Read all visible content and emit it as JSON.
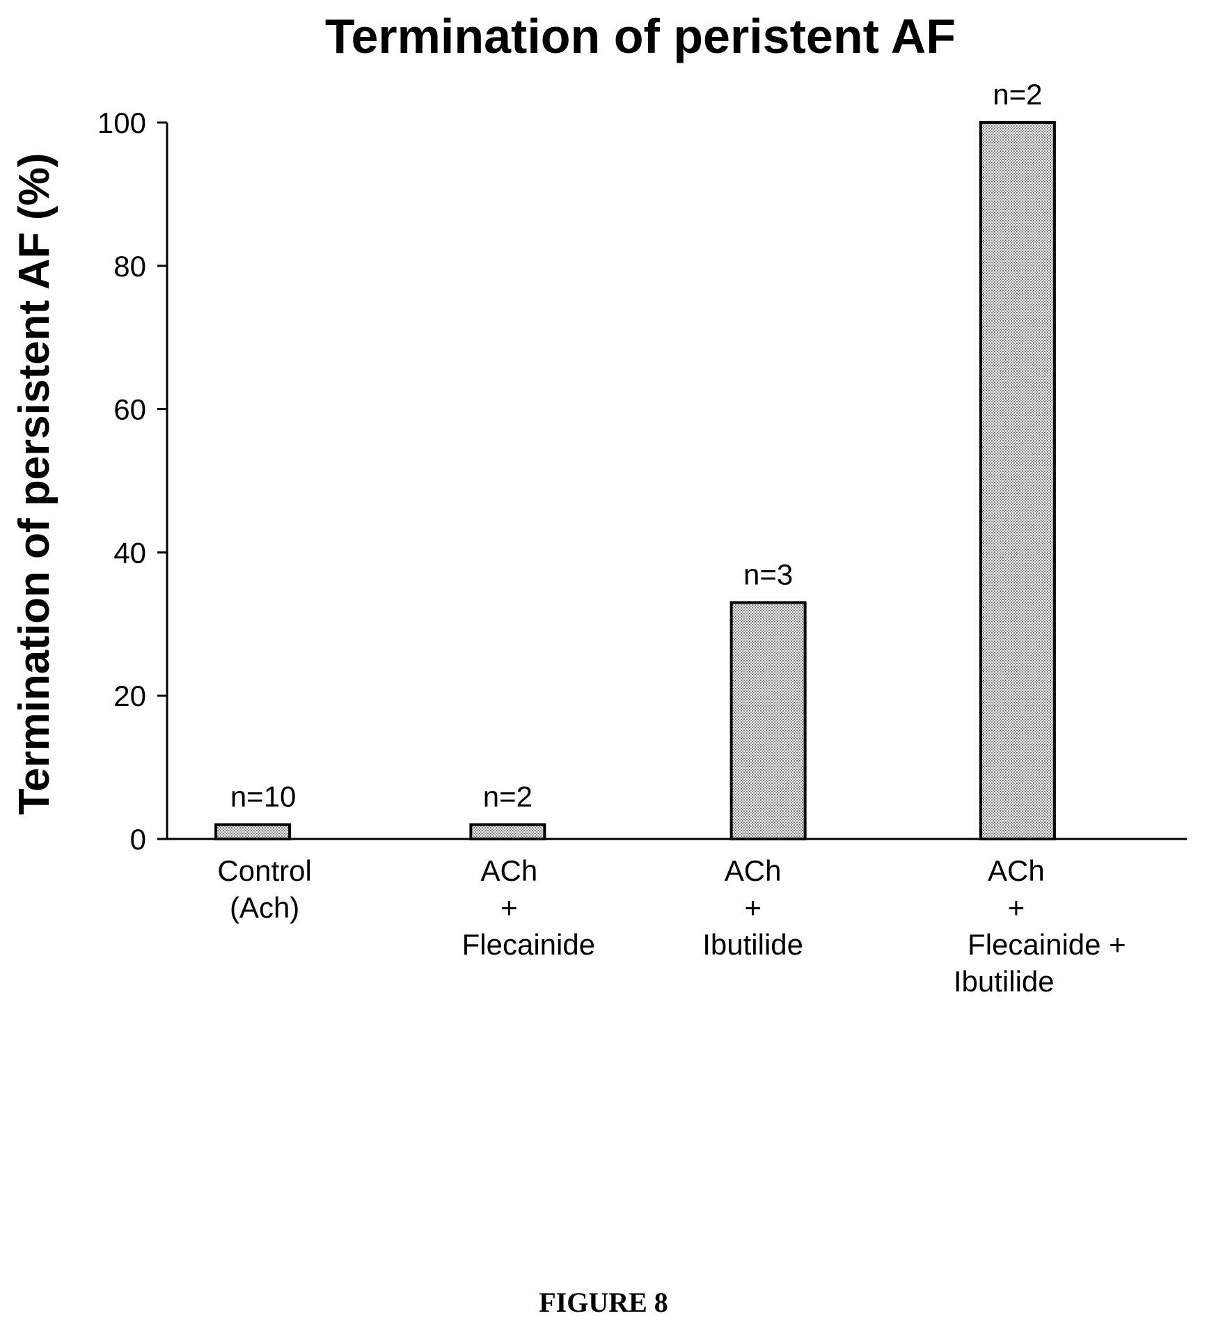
{
  "chart_data": {
    "type": "bar",
    "title": "Termination of peristent AF",
    "xlabel": "",
    "ylabel": "Termination of persistent AF (%)",
    "ylim": [
      0,
      100
    ],
    "yticks": [
      "0",
      "20",
      "40",
      "60",
      "80",
      "100"
    ],
    "categories": [
      [
        "Control",
        "(Ach)"
      ],
      [
        "ACh",
        "+",
        "Flecainide"
      ],
      [
        "ACh",
        "+",
        "Ibutilide"
      ],
      [
        "ACh",
        "+",
        "Flecainide +",
        "Ibutilide"
      ]
    ],
    "values": [
      2,
      2,
      33,
      100
    ],
    "data_labels": [
      "n=10",
      "n=2",
      "n=3",
      "n=2"
    ],
    "bar_fill": "#d9d9d9",
    "bar_pattern": "fine stipple",
    "grid": false,
    "legend": "none"
  },
  "caption": "FIGURE 8"
}
